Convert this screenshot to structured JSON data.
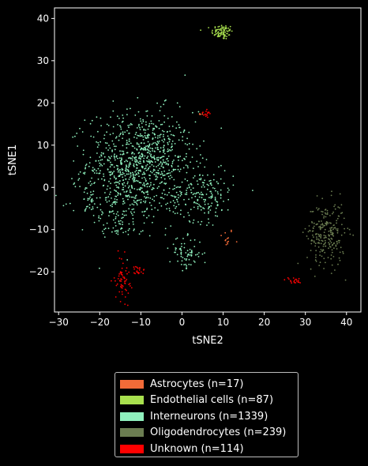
{
  "chart_data": {
    "type": "scatter",
    "xlabel": "tSNE2",
    "ylabel": "tSNE1",
    "xlim": [
      -31,
      43.5
    ],
    "ylim": [
      -29.5,
      42.5
    ],
    "xticks": [
      -30,
      -20,
      -10,
      0,
      10,
      20,
      30,
      40
    ],
    "yticks": [
      -20,
      -10,
      0,
      10,
      20,
      30,
      40
    ],
    "grid": false,
    "legend_position": "below",
    "series": [
      {
        "name": "Astrocytes (n=17)",
        "color": "#f26b38",
        "count": 17,
        "clusters": [
          {
            "x": 10.8,
            "y": -12.0,
            "sx": 0.9,
            "sy": 1.2,
            "n": 13
          },
          {
            "x": 4.5,
            "y": 17.2,
            "sx": 0.4,
            "sy": 0.3,
            "n": 4
          }
        ]
      },
      {
        "name": "Endothelial cells (n=87)",
        "color": "#a8e04e",
        "count": 87,
        "clusters": [
          {
            "x": 9.8,
            "y": 36.8,
            "sx": 1.3,
            "sy": 0.9,
            "n": 87
          }
        ]
      },
      {
        "name": "Interneurons (n=1339)",
        "color": "#8ff0bd",
        "count": 1339,
        "clusters": [
          {
            "x": -10.0,
            "y": 6.0,
            "sx": 6.5,
            "sy": 6.0,
            "n": 820
          },
          {
            "x": -15.0,
            "y": -3.0,
            "sx": 5.0,
            "sy": 4.5,
            "n": 170
          },
          {
            "x": 5.0,
            "y": -2.0,
            "sx": 3.8,
            "sy": 3.0,
            "n": 180
          },
          {
            "x": -7.0,
            "y": 9.0,
            "sx": 2.5,
            "sy": 2.5,
            "n": 60
          },
          {
            "x": 1.0,
            "y": -15.5,
            "sx": 2.0,
            "sy": 1.8,
            "n": 70
          },
          {
            "x": -22.5,
            "y": -3.5,
            "sx": 1.0,
            "sy": 1.5,
            "n": 20
          },
          {
            "x": -16.0,
            "y": -10.0,
            "sx": 2.0,
            "sy": 1.0,
            "n": 19
          }
        ]
      },
      {
        "name": "Oligodendrocytes (n=239)",
        "color": "#6b7d51",
        "count": 239,
        "clusters": [
          {
            "x": 35.0,
            "y": -11.0,
            "sx": 2.3,
            "sy": 3.8,
            "n": 239
          }
        ]
      },
      {
        "name": "Unknown (n=114)",
        "color": "#ff0000",
        "count": 114,
        "clusters": [
          {
            "x": -14.5,
            "y": -21.5,
            "sx": 0.9,
            "sy": 2.6,
            "n": 60
          },
          {
            "x": -10.5,
            "y": -19.8,
            "sx": 0.8,
            "sy": 0.6,
            "n": 20
          },
          {
            "x": 27.0,
            "y": -22.0,
            "sx": 1.0,
            "sy": 0.4,
            "n": 20
          },
          {
            "x": 6.0,
            "y": 17.3,
            "sx": 0.5,
            "sy": 0.4,
            "n": 14
          }
        ]
      }
    ]
  }
}
